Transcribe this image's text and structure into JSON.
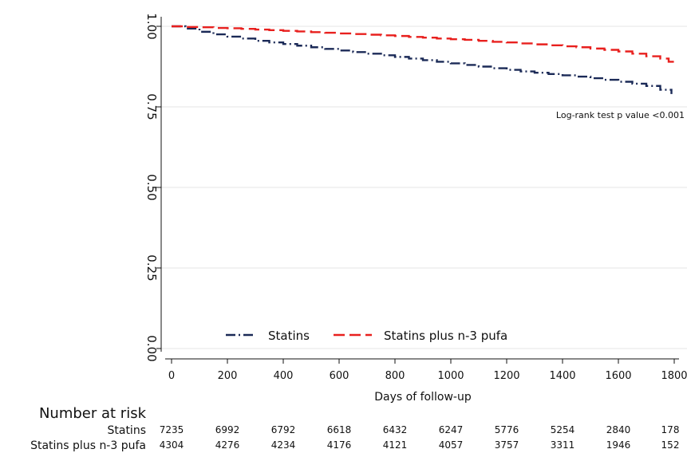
{
  "chart_data": {
    "type": "line",
    "xlabel": "Days of follow-up",
    "ylabel": "",
    "xlim": [
      0,
      1800
    ],
    "ylim": [
      0,
      1
    ],
    "x_ticks": [
      "0",
      "200",
      "400",
      "600",
      "800",
      "1000",
      "1200",
      "1400",
      "1600",
      "1800"
    ],
    "x_tick_values": [
      0,
      200,
      400,
      600,
      800,
      1000,
      1200,
      1400,
      1600,
      1800
    ],
    "y_ticks": [
      "0.00",
      "0.25",
      "0.50",
      "0.75",
      "1.00"
    ],
    "y_tick_values": [
      0,
      0.25,
      0.5,
      0.75,
      1.0
    ],
    "grid": "horizontal",
    "legend_position": "bottom",
    "annotation": "Log-rank test p value <0.001",
    "series": [
      {
        "name": "Statins",
        "color": "#1b2a57",
        "dash": "dash-dot",
        "x": [
          0,
          50,
          100,
          150,
          200,
          250,
          300,
          350,
          400,
          450,
          500,
          550,
          600,
          650,
          700,
          750,
          800,
          850,
          900,
          950,
          1000,
          1050,
          1100,
          1150,
          1200,
          1250,
          1300,
          1350,
          1400,
          1450,
          1500,
          1550,
          1600,
          1650,
          1700,
          1750,
          1790
        ],
        "y": [
          1.0,
          0.993,
          0.983,
          0.975,
          0.968,
          0.962,
          0.955,
          0.95,
          0.945,
          0.94,
          0.935,
          0.93,
          0.925,
          0.92,
          0.915,
          0.91,
          0.905,
          0.9,
          0.895,
          0.89,
          0.885,
          0.88,
          0.875,
          0.87,
          0.865,
          0.86,
          0.856,
          0.852,
          0.848,
          0.844,
          0.839,
          0.834,
          0.828,
          0.822,
          0.815,
          0.803,
          0.79
        ]
      },
      {
        "name": "Statins plus n-3 pufa",
        "color": "#e8201e",
        "dash": "long-dash",
        "x": [
          0,
          50,
          100,
          150,
          200,
          250,
          300,
          350,
          400,
          450,
          500,
          550,
          600,
          650,
          700,
          750,
          800,
          850,
          900,
          950,
          1000,
          1050,
          1100,
          1150,
          1200,
          1250,
          1300,
          1350,
          1400,
          1450,
          1500,
          1550,
          1600,
          1650,
          1700,
          1750,
          1780,
          1800
        ],
        "y": [
          1.0,
          0.998,
          0.997,
          0.995,
          0.994,
          0.992,
          0.99,
          0.988,
          0.986,
          0.984,
          0.982,
          0.98,
          0.978,
          0.976,
          0.974,
          0.972,
          0.97,
          0.967,
          0.965,
          0.962,
          0.96,
          0.958,
          0.955,
          0.952,
          0.95,
          0.947,
          0.944,
          0.941,
          0.938,
          0.935,
          0.931,
          0.927,
          0.922,
          0.915,
          0.907,
          0.9,
          0.89,
          0.888
        ]
      }
    ],
    "risk_table": {
      "title": "Number at risk",
      "rows": [
        {
          "label": "Statins",
          "values": [
            "7235",
            "6992",
            "6792",
            "6618",
            "6432",
            "6247",
            "5776",
            "5254",
            "2840",
            "178"
          ]
        },
        {
          "label": "Statins plus n-3 pufa",
          "values": [
            "4304",
            "4276",
            "4234",
            "4176",
            "4121",
            "4057",
            "3757",
            "3311",
            "1946",
            "152"
          ]
        }
      ]
    }
  }
}
